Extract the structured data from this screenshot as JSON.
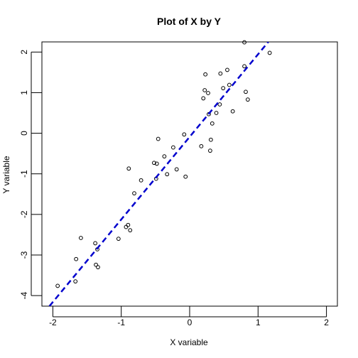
{
  "chart_data": {
    "type": "scatter",
    "title": "Plot of X by Y",
    "xlabel": "X variable",
    "ylabel": "Y variable",
    "xlim": [
      -2.16,
      2.16
    ],
    "ylim": [
      -4.26,
      2.25
    ],
    "x_ticks": [
      -2,
      -1,
      0,
      1,
      2
    ],
    "x_tick_labels": [
      "-2",
      "-1",
      "0",
      "1",
      "2"
    ],
    "y_ticks": [
      -4,
      -3,
      -2,
      -1,
      0,
      1,
      2
    ],
    "y_tick_labels": [
      "-4",
      "-3",
      "-2",
      "-1",
      "0",
      "1",
      "2"
    ],
    "grid": false,
    "point_style": "open-circle",
    "points": [
      {
        "x": -1.93,
        "y": -3.76
      },
      {
        "x": -1.67,
        "y": -3.65
      },
      {
        "x": -1.66,
        "y": -3.1
      },
      {
        "x": -1.59,
        "y": -2.58
      },
      {
        "x": -1.38,
        "y": -2.71
      },
      {
        "x": -1.35,
        "y": -2.86
      },
      {
        "x": -1.37,
        "y": -3.24
      },
      {
        "x": -1.34,
        "y": -3.3
      },
      {
        "x": -1.04,
        "y": -2.6
      },
      {
        "x": -0.93,
        "y": -2.31
      },
      {
        "x": -0.9,
        "y": -2.26
      },
      {
        "x": -0.87,
        "y": -2.39
      },
      {
        "x": -0.89,
        "y": -0.87
      },
      {
        "x": -0.81,
        "y": -1.48
      },
      {
        "x": -0.71,
        "y": -1.16
      },
      {
        "x": -0.52,
        "y": -0.73
      },
      {
        "x": -0.48,
        "y": -0.75
      },
      {
        "x": -0.49,
        "y": -1.12
      },
      {
        "x": -0.46,
        "y": -0.14
      },
      {
        "x": -0.37,
        "y": -0.57
      },
      {
        "x": -0.33,
        "y": -1.01
      },
      {
        "x": -0.24,
        "y": -0.35
      },
      {
        "x": -0.19,
        "y": -0.89
      },
      {
        "x": -0.08,
        "y": -0.03
      },
      {
        "x": -0.06,
        "y": -1.07
      },
      {
        "x": 0.17,
        "y": -0.32
      },
      {
        "x": 0.2,
        "y": 0.86
      },
      {
        "x": 0.22,
        "y": 1.06
      },
      {
        "x": 0.23,
        "y": 1.45
      },
      {
        "x": 0.27,
        "y": 0.99
      },
      {
        "x": 0.28,
        "y": 0.47
      },
      {
        "x": 0.3,
        "y": -0.43
      },
      {
        "x": 0.31,
        "y": -0.16
      },
      {
        "x": 0.33,
        "y": 0.24
      },
      {
        "x": 0.39,
        "y": 0.5
      },
      {
        "x": 0.44,
        "y": 0.71
      },
      {
        "x": 0.45,
        "y": 1.47
      },
      {
        "x": 0.49,
        "y": 1.11
      },
      {
        "x": 0.55,
        "y": 1.56
      },
      {
        "x": 0.58,
        "y": 1.19
      },
      {
        "x": 0.63,
        "y": 0.54
      },
      {
        "x": 0.8,
        "y": 1.65
      },
      {
        "x": 0.82,
        "y": 1.02
      },
      {
        "x": 0.85,
        "y": 0.83
      },
      {
        "x": 1.17,
        "y": 1.98
      },
      {
        "x": 0.8,
        "y": 2.24
      }
    ],
    "fit_line": {
      "x": [
        -2.05,
        1.15
      ],
      "y": [
        -4.26,
        2.25
      ],
      "color": "#0000cd",
      "style": "dashed"
    }
  }
}
